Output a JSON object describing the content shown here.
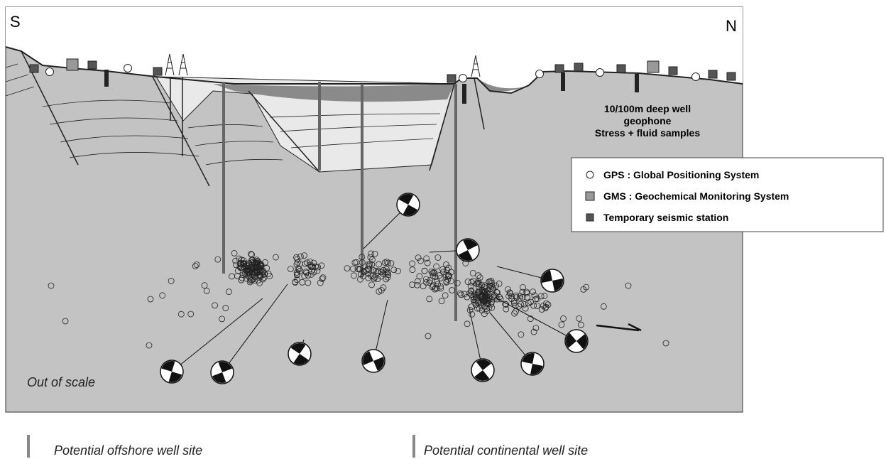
{
  "labels": {
    "south": "S",
    "north": "N",
    "scale_note": "Out of scale"
  },
  "annotation": [
    "10/100m deep well",
    "geophone",
    "Stress + fluid samples"
  ],
  "legend": [
    "GPS : Global Positioning System",
    "GMS : Geochemical Monitoring System",
    "Temporary seismic station"
  ],
  "footer": [
    "Potential offshore well site",
    "Potential continental well site"
  ]
}
